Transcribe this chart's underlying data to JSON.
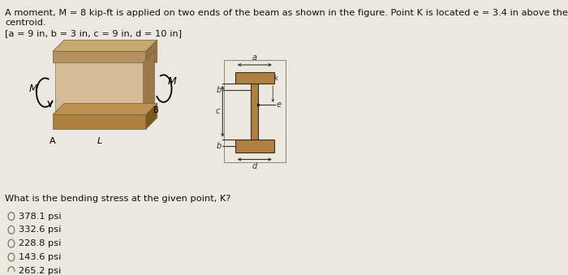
{
  "title_line1": "A moment, M = 8 kip-ft is applied on two ends of the beam as shown in the figure. Point K is located e = 3.4 in above the",
  "title_line2": "centroid.",
  "params_line": "[a = 9 in, b = 3 in, c = 9 in, d = 10 in]",
  "question": "What is the bending stress at the given point, K?",
  "options": [
    "378.1 psi",
    "332.6 psi",
    "228.8 psi",
    "143.6 psi",
    "265.2 psi"
  ],
  "bg_color": "#e8e0d4",
  "beam_front_color": "#c9aa80",
  "beam_side_color": "#a07848",
  "beam_base_color": "#8b6030",
  "beam_top_color": "#b89060",
  "text_color": "#111111",
  "ibeam_color": "#b08040",
  "ibeam_edge": "#555533"
}
